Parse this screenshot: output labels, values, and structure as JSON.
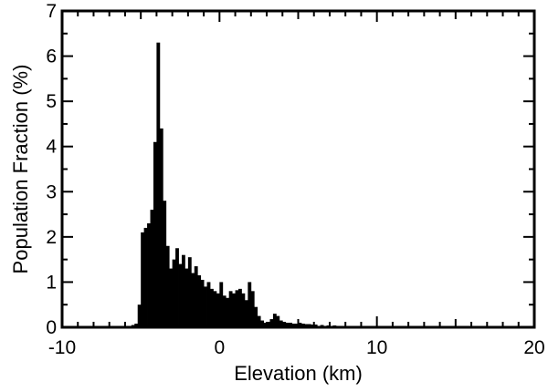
{
  "chart_data": {
    "type": "bar",
    "title": "",
    "xlabel": "Elevation (km)",
    "ylabel": "Population Fraction (%)",
    "xlim": [
      -10,
      20
    ],
    "ylim": [
      0,
      7
    ],
    "x_ticks": [
      -10,
      0,
      10,
      20
    ],
    "y_ticks": [
      0,
      1,
      2,
      3,
      4,
      5,
      6,
      7
    ],
    "grid": false,
    "legend": "none",
    "bar_color": "#000000",
    "bin_width_km": 0.2,
    "bins": [
      [
        -6.0,
        0.02
      ],
      [
        -5.8,
        0.03
      ],
      [
        -5.6,
        0.05
      ],
      [
        -5.4,
        0.08
      ],
      [
        -5.2,
        0.5
      ],
      [
        -5.0,
        2.1
      ],
      [
        -4.8,
        2.2
      ],
      [
        -4.6,
        2.3
      ],
      [
        -4.4,
        2.6
      ],
      [
        -4.2,
        4.1
      ],
      [
        -4.0,
        6.3
      ],
      [
        -3.8,
        4.4
      ],
      [
        -3.6,
        2.8
      ],
      [
        -3.4,
        1.8
      ],
      [
        -3.2,
        1.3
      ],
      [
        -3.0,
        1.5
      ],
      [
        -2.8,
        1.75
      ],
      [
        -2.6,
        1.4
      ],
      [
        -2.4,
        1.6
      ],
      [
        -2.2,
        1.3
      ],
      [
        -2.0,
        1.55
      ],
      [
        -1.8,
        1.2
      ],
      [
        -1.6,
        1.35
      ],
      [
        -1.4,
        1.15
      ],
      [
        -1.2,
        1.05
      ],
      [
        -1.0,
        0.9
      ],
      [
        -0.8,
        1.0
      ],
      [
        -0.6,
        0.85
      ],
      [
        -0.4,
        0.8
      ],
      [
        -0.2,
        0.75
      ],
      [
        0.0,
        1.0
      ],
      [
        0.2,
        0.7
      ],
      [
        0.4,
        0.65
      ],
      [
        0.6,
        0.8
      ],
      [
        0.8,
        0.75
      ],
      [
        1.0,
        0.82
      ],
      [
        1.2,
        0.85
      ],
      [
        1.4,
        0.75
      ],
      [
        1.6,
        0.6
      ],
      [
        1.8,
        1.0
      ],
      [
        2.0,
        0.8
      ],
      [
        2.2,
        0.45
      ],
      [
        2.4,
        0.25
      ],
      [
        2.6,
        0.15
      ],
      [
        2.8,
        0.1
      ],
      [
        3.0,
        0.12
      ],
      [
        3.2,
        0.18
      ],
      [
        3.4,
        0.3
      ],
      [
        3.6,
        0.25
      ],
      [
        3.8,
        0.15
      ],
      [
        4.0,
        0.12
      ],
      [
        4.2,
        0.1
      ],
      [
        4.4,
        0.1
      ],
      [
        4.6,
        0.08
      ],
      [
        4.8,
        0.08
      ],
      [
        5.0,
        0.1
      ],
      [
        5.2,
        0.08
      ],
      [
        5.4,
        0.07
      ],
      [
        5.6,
        0.07
      ],
      [
        5.8,
        0.06
      ],
      [
        6.0,
        0.06
      ],
      [
        6.4,
        0.05
      ],
      [
        6.8,
        0.04
      ],
      [
        7.2,
        0.04
      ],
      [
        7.6,
        0.03
      ],
      [
        8.0,
        0.03
      ],
      [
        8.5,
        0.02
      ],
      [
        9.0,
        0.02
      ],
      [
        9.5,
        0.02
      ],
      [
        10.0,
        0.015
      ],
      [
        11.0,
        0.01
      ],
      [
        12.0,
        0.01
      ],
      [
        13.0,
        0.008
      ],
      [
        14.0,
        0.005
      ],
      [
        15.0,
        0.004
      ]
    ]
  }
}
